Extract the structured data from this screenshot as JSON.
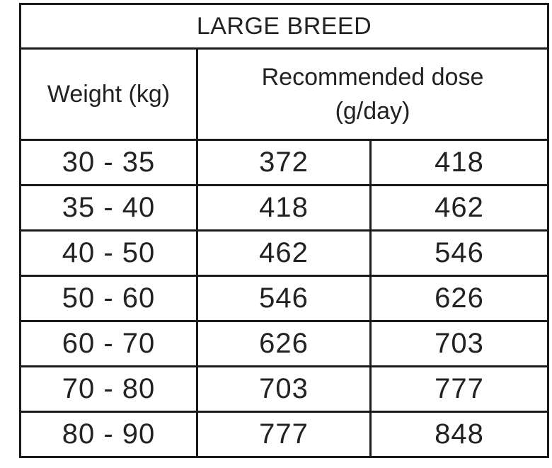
{
  "table": {
    "title": "LARGE BREED",
    "headers": {
      "weight": "Weight (kg)",
      "dose_line1": "Recommended dose",
      "dose_line2": "(g/day)"
    },
    "rows": [
      {
        "weight": "30 - 35",
        "min": "372",
        "max": "418"
      },
      {
        "weight": "35 - 40",
        "min": "418",
        "max": "462"
      },
      {
        "weight": "40 - 50",
        "min": "462",
        "max": "546"
      },
      {
        "weight": "50 - 60",
        "min": "546",
        "max": "626"
      },
      {
        "weight": "60 - 70",
        "min": "626",
        "max": "703"
      },
      {
        "weight": "70 - 80",
        "min": "703",
        "max": "777"
      },
      {
        "weight": "80 - 90",
        "min": "777",
        "max": "848"
      }
    ]
  }
}
